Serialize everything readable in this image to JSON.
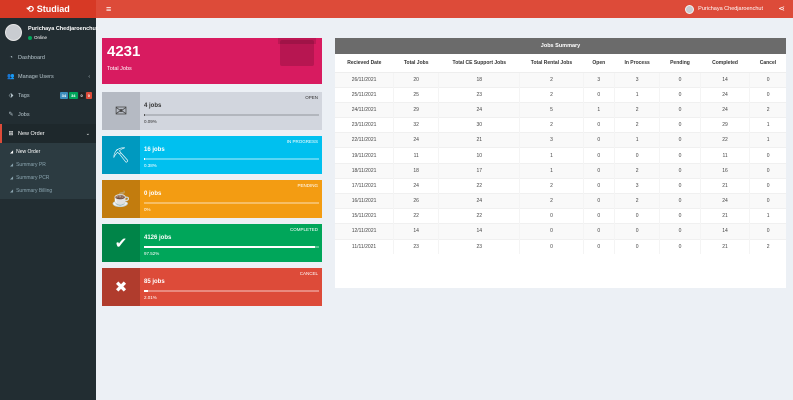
{
  "brand": {
    "title": "Studiad",
    "icon": "logo-icon"
  },
  "header": {
    "user_name": "Purichaya Chedjaroenchut",
    "menu_icon": "hamburger-icon",
    "share_icon": "share-icon"
  },
  "sidebar": {
    "user": {
      "name": "Purichaya Chedjaroenchut",
      "status": "Online"
    },
    "items": [
      {
        "label": "Dashboard",
        "icon": "dashboard-icon"
      },
      {
        "label": "Manage Users",
        "icon": "users-icon"
      },
      {
        "label": "Tags",
        "icon": "tag-icon",
        "badges": [
          {
            "text": "34",
            "color": "#3c8dbc"
          },
          {
            "text": "34",
            "color": "#00a65a"
          },
          {
            "text": "0",
            "color": "#222222"
          },
          {
            "text": "0",
            "color": "#dd4b39"
          }
        ]
      },
      {
        "label": "Jobs",
        "icon": "jobs-icon"
      },
      {
        "label": "New Order",
        "icon": "order-icon"
      }
    ],
    "submenu": [
      {
        "label": "New Order"
      },
      {
        "label": "Summary PR"
      },
      {
        "label": "Summary PCR"
      },
      {
        "label": "Summary Billing"
      }
    ]
  },
  "total": {
    "value": "4231",
    "label": "Total Jobs",
    "color": "#d81b60"
  },
  "status_boxes": [
    {
      "status": "OPEN",
      "count": "4 jobs",
      "percent": "0.09%",
      "fraction": 0.0009,
      "color": "#d2d6de",
      "icon": "envelope-icon"
    },
    {
      "status": "IN PROGRESS",
      "count": "16 jobs",
      "percent": "0.38%",
      "fraction": 0.0038,
      "color": "#00c0ef",
      "icon": "excavator-icon"
    },
    {
      "status": "PENDING",
      "count": "0 jobs",
      "percent": "0%",
      "fraction": 0,
      "color": "#f39c12",
      "icon": "coffee-icon"
    },
    {
      "status": "COMPLETED",
      "count": "4126 jobs",
      "percent": "97.52%",
      "fraction": 0.9752,
      "color": "#00a65a",
      "icon": "check-icon"
    },
    {
      "status": "CANCEL",
      "count": "85 jobs",
      "percent": "2.01%",
      "fraction": 0.0201,
      "color": "#dd4b39",
      "icon": "times-icon"
    }
  ],
  "summary": {
    "title": "Jobs Summary",
    "columns": [
      "Recieved Date",
      "Total Jobs",
      "Total CE Support Jobs",
      "Total Rental Jobs",
      "Open",
      "In Process",
      "Pending",
      "Completed",
      "Cancel"
    ],
    "rows": [
      [
        "26/11/2021",
        "20",
        "18",
        "2",
        "3",
        "3",
        "0",
        "14",
        "0"
      ],
      [
        "25/11/2021",
        "25",
        "23",
        "2",
        "0",
        "1",
        "0",
        "24",
        "0"
      ],
      [
        "24/11/2021",
        "29",
        "24",
        "5",
        "1",
        "2",
        "0",
        "24",
        "2"
      ],
      [
        "23/11/2021",
        "32",
        "30",
        "2",
        "0",
        "2",
        "0",
        "29",
        "1"
      ],
      [
        "22/11/2021",
        "24",
        "21",
        "3",
        "0",
        "1",
        "0",
        "22",
        "1"
      ],
      [
        "19/11/2021",
        "11",
        "10",
        "1",
        "0",
        "0",
        "0",
        "11",
        "0"
      ],
      [
        "18/11/2021",
        "18",
        "17",
        "1",
        "0",
        "2",
        "0",
        "16",
        "0"
      ],
      [
        "17/11/2021",
        "24",
        "22",
        "2",
        "0",
        "3",
        "0",
        "21",
        "0"
      ],
      [
        "16/11/2021",
        "26",
        "24",
        "2",
        "0",
        "2",
        "0",
        "24",
        "0"
      ],
      [
        "15/11/2021",
        "22",
        "22",
        "0",
        "0",
        "0",
        "0",
        "21",
        "1"
      ],
      [
        "12/11/2021",
        "14",
        "14",
        "0",
        "0",
        "0",
        "0",
        "14",
        "0"
      ],
      [
        "11/11/2021",
        "23",
        "23",
        "0",
        "0",
        "0",
        "0",
        "21",
        "2"
      ]
    ]
  }
}
